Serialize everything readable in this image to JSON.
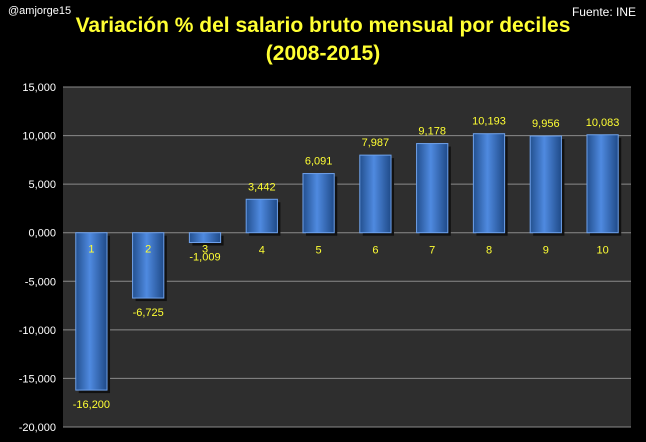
{
  "header": {
    "author": "@amjorge15",
    "source": "Fuente: INE",
    "title_line1": "Variación % del salario bruto mensual por deciles",
    "title_line2": "(2008-2015)"
  },
  "colors": {
    "background": "#000000",
    "plot_area": "#2e2e2e",
    "gridline": "#8a8a8a",
    "bar": "#3a74c8",
    "bar_highlight": "#7aaeee",
    "title": "#ffff33",
    "data_label": "#ffff33"
  },
  "chart_data": {
    "type": "bar",
    "categories": [
      "1",
      "2",
      "3",
      "4",
      "5",
      "6",
      "7",
      "8",
      "9",
      "10"
    ],
    "values": [
      -16.2,
      -6.725,
      -1.009,
      3.442,
      6.091,
      7.987,
      9.178,
      10.193,
      9.956,
      10.083
    ],
    "data_labels": [
      "-16,200",
      "-6,725",
      "-1,009",
      "3,442",
      "6,091",
      "7,987",
      "9,178",
      "10,193",
      "9,956",
      "10,083"
    ],
    "y_ticks": [
      15,
      10,
      5,
      0,
      -5,
      -10,
      -15,
      -20
    ],
    "y_tick_labels": [
      "15,000",
      "10,000",
      "5,000",
      "0,000",
      "-5,000",
      "-10,000",
      "-15,000",
      "-20,000"
    ],
    "ylim": [
      -20,
      15
    ],
    "grid": true,
    "legend": "none"
  }
}
